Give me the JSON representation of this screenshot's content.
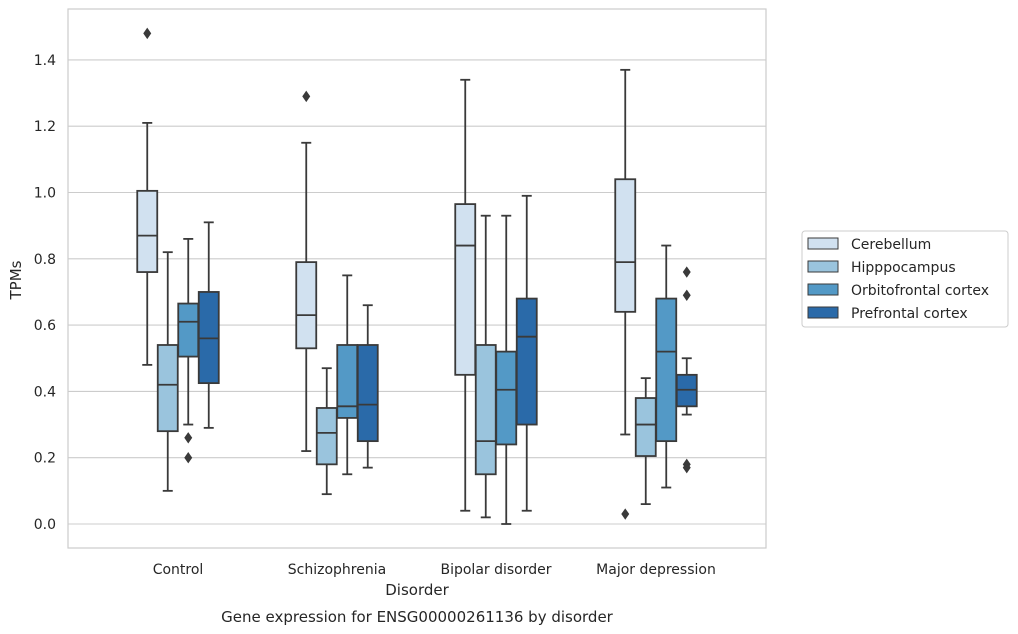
{
  "chart_data": {
    "type": "box",
    "title": "",
    "caption": "Gene expression for ENSG00000261136 by disorder",
    "xlabel": "Disorder",
    "ylabel": "TPMs",
    "ylim": [
      -0.07,
      1.56
    ],
    "yticks": [
      0.0,
      0.2,
      0.4,
      0.6,
      0.8,
      1.0,
      1.2,
      1.4
    ],
    "ytick_labels": [
      "0.0",
      "0.2",
      "0.4",
      "0.6",
      "0.8",
      "1.0",
      "1.2",
      "1.4"
    ],
    "grid": "horizontal",
    "legend_position": "right",
    "categories": [
      "Control",
      "Schizophrenia",
      "Bipolar disorder",
      "Major depression"
    ],
    "series": [
      {
        "name": "Cerebellum",
        "color": "#d1e1f0",
        "boxes": [
          {
            "whisker_low": 0.48,
            "q1": 0.76,
            "median": 0.87,
            "q3": 1.005,
            "whisker_high": 1.21,
            "outliers": [
              1.48
            ]
          },
          {
            "whisker_low": 0.22,
            "q1": 0.53,
            "median": 0.63,
            "q3": 0.79,
            "whisker_high": 1.15,
            "outliers": [
              1.29
            ]
          },
          {
            "whisker_low": 0.04,
            "q1": 0.45,
            "median": 0.84,
            "q3": 0.965,
            "whisker_high": 1.34,
            "outliers": []
          },
          {
            "whisker_low": 0.27,
            "q1": 0.64,
            "median": 0.79,
            "q3": 1.04,
            "whisker_high": 1.37,
            "outliers": [
              0.03
            ]
          }
        ]
      },
      {
        "name": "Hipppocampus",
        "color": "#9ac4dd",
        "boxes": [
          {
            "whisker_low": 0.1,
            "q1": 0.28,
            "median": 0.42,
            "q3": 0.54,
            "whisker_high": 0.82,
            "outliers": []
          },
          {
            "whisker_low": 0.09,
            "q1": 0.18,
            "median": 0.275,
            "q3": 0.35,
            "whisker_high": 0.47,
            "outliers": []
          },
          {
            "whisker_low": 0.02,
            "q1": 0.15,
            "median": 0.25,
            "q3": 0.54,
            "whisker_high": 0.93,
            "outliers": []
          },
          {
            "whisker_low": 0.06,
            "q1": 0.205,
            "median": 0.3,
            "q3": 0.38,
            "whisker_high": 0.44,
            "outliers": []
          }
        ]
      },
      {
        "name": "Orbitofrontal cortex",
        "color": "#5399c6",
        "boxes": [
          {
            "whisker_low": 0.3,
            "q1": 0.505,
            "median": 0.61,
            "q3": 0.665,
            "whisker_high": 0.86,
            "outliers": [
              0.26,
              0.2
            ]
          },
          {
            "whisker_low": 0.15,
            "q1": 0.32,
            "median": 0.355,
            "q3": 0.54,
            "whisker_high": 0.75,
            "outliers": []
          },
          {
            "whisker_low": 0.0,
            "q1": 0.24,
            "median": 0.405,
            "q3": 0.52,
            "whisker_high": 0.93,
            "outliers": []
          },
          {
            "whisker_low": 0.11,
            "q1": 0.25,
            "median": 0.52,
            "q3": 0.68,
            "whisker_high": 0.84,
            "outliers": []
          }
        ]
      },
      {
        "name": "Prefrontal cortex",
        "color": "#2a6aa9",
        "boxes": [
          {
            "whisker_low": 0.29,
            "q1": 0.425,
            "median": 0.56,
            "q3": 0.7,
            "whisker_high": 0.91,
            "outliers": []
          },
          {
            "whisker_low": 0.17,
            "q1": 0.25,
            "median": 0.36,
            "q3": 0.54,
            "whisker_high": 0.66,
            "outliers": []
          },
          {
            "whisker_low": 0.04,
            "q1": 0.3,
            "median": 0.565,
            "q3": 0.68,
            "whisker_high": 0.99,
            "outliers": []
          },
          {
            "whisker_low": 0.33,
            "q1": 0.355,
            "median": 0.405,
            "q3": 0.45,
            "whisker_high": 0.5,
            "outliers": [
              0.76,
              0.69,
              0.18,
              0.17
            ]
          }
        ]
      }
    ]
  },
  "colors": {
    "edge": "#3a3a3a",
    "grid": "#cccccc",
    "axes_frame": "#cccccc"
  }
}
